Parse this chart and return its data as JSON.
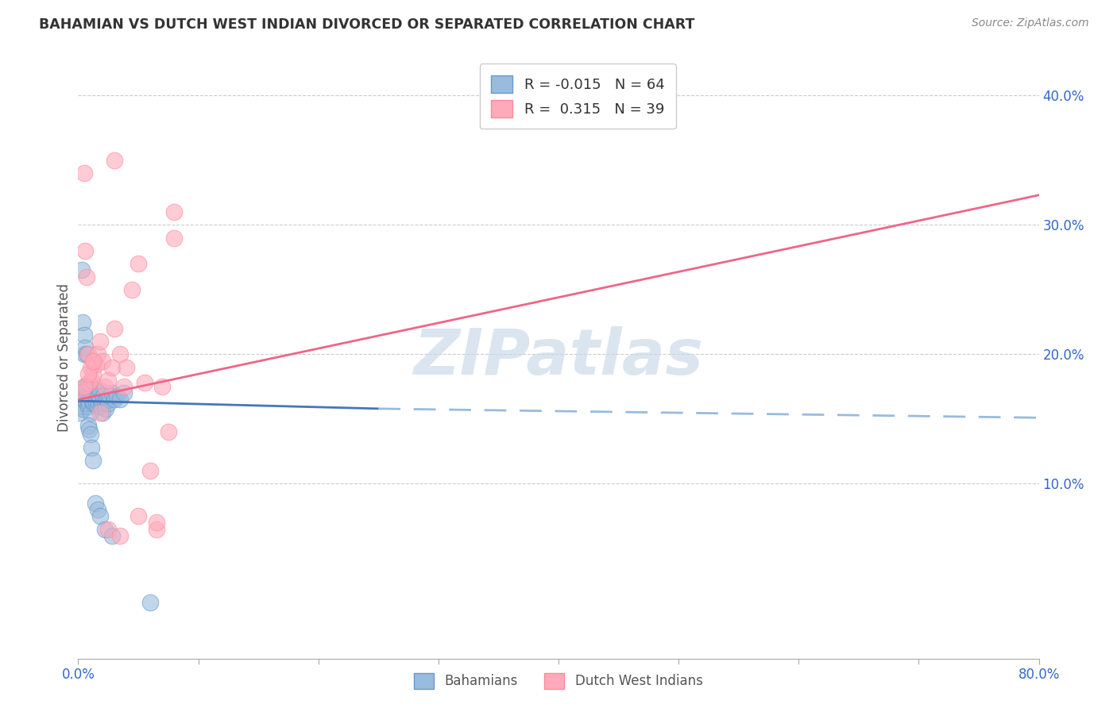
{
  "title": "BAHAMIAN VS DUTCH WEST INDIAN DIVORCED OR SEPARATED CORRELATION CHART",
  "source": "Source: ZipAtlas.com",
  "ylabel": "Divorced or Separated",
  "xlim": [
    0.0,
    0.8
  ],
  "ylim": [
    -0.035,
    0.43
  ],
  "xticks": [
    0.0,
    0.1,
    0.2,
    0.3,
    0.4,
    0.5,
    0.6,
    0.7,
    0.8
  ],
  "xticklabels": [
    "0.0%",
    "",
    "",
    "",
    "",
    "",
    "",
    "",
    "80.0%"
  ],
  "yticks_right": [
    0.1,
    0.2,
    0.3,
    0.4
  ],
  "ytick_right_labels": [
    "10.0%",
    "20.0%",
    "30.0%",
    "40.0%"
  ],
  "legend_blue_r": "-0.015",
  "legend_blue_n": "64",
  "legend_pink_r": "0.315",
  "legend_pink_n": "39",
  "blue_color": "#99BBDD",
  "pink_color": "#FFAABB",
  "blue_scatter_edge": "#6699CC",
  "pink_scatter_edge": "#FF8899",
  "line_blue_solid_color": "#4477BB",
  "line_blue_dashed_color": "#99BBDD",
  "line_pink_color": "#EE6688",
  "watermark_text": "ZIPatlas",
  "background_color": "#FFFFFF",
  "grid_color": "#CCCCCC",
  "tick_label_color": "#3366CC",
  "blue_scatter_x": [
    0.002,
    0.003,
    0.004,
    0.005,
    0.005,
    0.005,
    0.006,
    0.006,
    0.007,
    0.007,
    0.007,
    0.008,
    0.008,
    0.009,
    0.009,
    0.01,
    0.01,
    0.01,
    0.011,
    0.011,
    0.012,
    0.012,
    0.013,
    0.013,
    0.014,
    0.014,
    0.015,
    0.015,
    0.016,
    0.016,
    0.017,
    0.017,
    0.018,
    0.018,
    0.019,
    0.02,
    0.02,
    0.021,
    0.022,
    0.023,
    0.024,
    0.025,
    0.026,
    0.028,
    0.03,
    0.032,
    0.035,
    0.038,
    0.003,
    0.004,
    0.005,
    0.006,
    0.007,
    0.008,
    0.009,
    0.01,
    0.011,
    0.012,
    0.014,
    0.016,
    0.018,
    0.022,
    0.028,
    0.06
  ],
  "blue_scatter_y": [
    0.155,
    0.16,
    0.158,
    0.2,
    0.175,
    0.165,
    0.168,
    0.172,
    0.17,
    0.175,
    0.162,
    0.16,
    0.165,
    0.17,
    0.162,
    0.155,
    0.168,
    0.175,
    0.165,
    0.17,
    0.162,
    0.168,
    0.163,
    0.17,
    0.165,
    0.172,
    0.162,
    0.168,
    0.16,
    0.17,
    0.163,
    0.168,
    0.165,
    0.172,
    0.16,
    0.155,
    0.162,
    0.168,
    0.163,
    0.158,
    0.165,
    0.162,
    0.168,
    0.17,
    0.165,
    0.168,
    0.165,
    0.17,
    0.265,
    0.225,
    0.215,
    0.205,
    0.2,
    0.145,
    0.142,
    0.138,
    0.128,
    0.118,
    0.085,
    0.08,
    0.075,
    0.065,
    0.06,
    0.008
  ],
  "pink_scatter_x": [
    0.003,
    0.005,
    0.006,
    0.007,
    0.008,
    0.009,
    0.01,
    0.011,
    0.012,
    0.013,
    0.015,
    0.016,
    0.018,
    0.02,
    0.022,
    0.025,
    0.028,
    0.03,
    0.035,
    0.038,
    0.04,
    0.045,
    0.05,
    0.055,
    0.06,
    0.065,
    0.07,
    0.075,
    0.08,
    0.005,
    0.008,
    0.012,
    0.018,
    0.025,
    0.035,
    0.05,
    0.065,
    0.08,
    0.03
  ],
  "pink_scatter_y": [
    0.17,
    0.34,
    0.28,
    0.26,
    0.2,
    0.178,
    0.19,
    0.18,
    0.185,
    0.195,
    0.192,
    0.2,
    0.21,
    0.195,
    0.175,
    0.18,
    0.19,
    0.22,
    0.2,
    0.175,
    0.19,
    0.25,
    0.27,
    0.178,
    0.11,
    0.065,
    0.175,
    0.14,
    0.31,
    0.175,
    0.185,
    0.195,
    0.155,
    0.065,
    0.06,
    0.075,
    0.07,
    0.29,
    0.35
  ],
  "blue_line_x0": 0.0,
  "blue_line_x_break": 0.25,
  "blue_line_x1": 0.8,
  "blue_line_y0": 0.164,
  "blue_line_y_break": 0.158,
  "blue_line_y1": 0.151,
  "pink_line_x0": 0.0,
  "pink_line_x1": 0.8,
  "pink_line_y0": 0.165,
  "pink_line_y1": 0.323
}
